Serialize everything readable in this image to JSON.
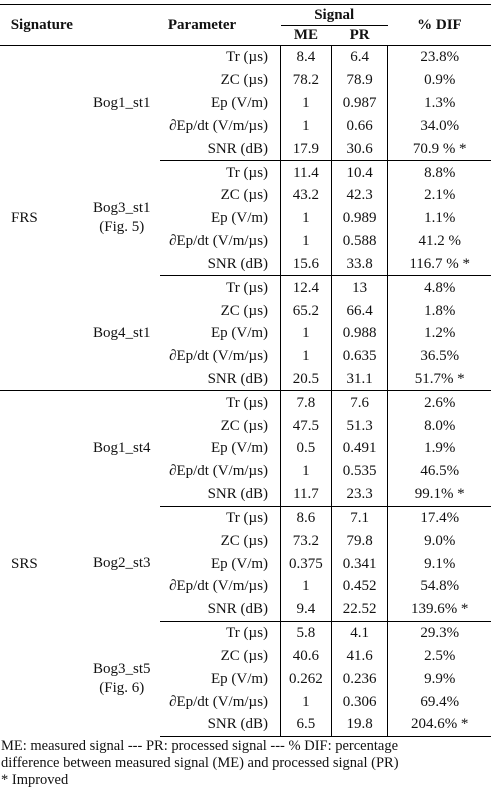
{
  "headers": {
    "signature": "Signature",
    "parameter": "Parameter",
    "signal": "Signal",
    "me": "ME",
    "pr": "PR",
    "dif": "% DIF"
  },
  "sections": [
    {
      "signature": "FRS",
      "groups": [
        {
          "name": "Bog1_st1",
          "ref": "",
          "rows": [
            {
              "param": "Tr (µs)",
              "me": "8.4",
              "pr": "6.4",
              "dif": "23.8%"
            },
            {
              "param": "ZC (µs)",
              "me": "78.2",
              "pr": "78.9",
              "dif": "0.9%"
            },
            {
              "param": "Ep (V/m)",
              "me": "1",
              "pr": "0.987",
              "dif": "1.3%"
            },
            {
              "param": "∂Ep/dt (V/m/µs)",
              "me": "1",
              "pr": "0.66",
              "dif": "34.0%"
            },
            {
              "param": "SNR (dB)",
              "me": "17.9",
              "pr": "30.6",
              "dif": "70.9 % *"
            }
          ]
        },
        {
          "name": "Bog3_st1",
          "ref": "(Fig. 5)",
          "rows": [
            {
              "param": "Tr (µs)",
              "me": "11.4",
              "pr": "10.4",
              "dif": "8.8%"
            },
            {
              "param": "ZC (µs)",
              "me": "43.2",
              "pr": "42.3",
              "dif": "2.1%"
            },
            {
              "param": "Ep (V/m)",
              "me": "1",
              "pr": "0.989",
              "dif": "1.1%"
            },
            {
              "param": "∂Ep/dt (V/m/µs)",
              "me": "1",
              "pr": "0.588",
              "dif": "41.2 %"
            },
            {
              "param": "SNR (dB)",
              "me": "15.6",
              "pr": "33.8",
              "dif": "116.7 % *"
            }
          ]
        },
        {
          "name": "Bog4_st1",
          "ref": "",
          "rows": [
            {
              "param": "Tr (µs)",
              "me": "12.4",
              "pr": "13",
              "dif": "4.8%"
            },
            {
              "param": "ZC (µs)",
              "me": "65.2",
              "pr": "66.4",
              "dif": "1.8%"
            },
            {
              "param": "Ep (V/m)",
              "me": "1",
              "pr": "0.988",
              "dif": "1.2%"
            },
            {
              "param": "∂Ep/dt (V/m/µs)",
              "me": "1",
              "pr": "0.635",
              "dif": "36.5%"
            },
            {
              "param": "SNR (dB)",
              "me": "20.5",
              "pr": "31.1",
              "dif": "51.7% *"
            }
          ]
        }
      ]
    },
    {
      "signature": "SRS",
      "groups": [
        {
          "name": "Bog1_st4",
          "ref": "",
          "rows": [
            {
              "param": "Tr (µs)",
              "me": "7.8",
              "pr": "7.6",
              "dif": "2.6%"
            },
            {
              "param": "ZC (µs)",
              "me": "47.5",
              "pr": "51.3",
              "dif": "8.0%"
            },
            {
              "param": "Ep (V/m)",
              "me": "0.5",
              "pr": "0.491",
              "dif": "1.9%"
            },
            {
              "param": "∂Ep/dt (V/m/µs)",
              "me": "1",
              "pr": "0.535",
              "dif": "46.5%"
            },
            {
              "param": "SNR (dB)",
              "me": "11.7",
              "pr": "23.3",
              "dif": "99.1% *"
            }
          ]
        },
        {
          "name": "Bog2_st3",
          "ref": "",
          "rows": [
            {
              "param": "Tr (µs)",
              "me": "8.6",
              "pr": "7.1",
              "dif": "17.4%"
            },
            {
              "param": "ZC (µs)",
              "me": "73.2",
              "pr": "79.8",
              "dif": "9.0%"
            },
            {
              "param": "Ep (V/m)",
              "me": "0.375",
              "pr": "0.341",
              "dif": "9.1%"
            },
            {
              "param": "∂Ep/dt (V/m/µs)",
              "me": "1",
              "pr": "0.452",
              "dif": "54.8%"
            },
            {
              "param": "SNR (dB)",
              "me": "9.4",
              "pr": "22.52",
              "dif": "139.6% *"
            }
          ]
        },
        {
          "name": "Bog3_st5",
          "ref": "(Fig. 6)",
          "rows": [
            {
              "param": "Tr (µs)",
              "me": "5.8",
              "pr": "4.1",
              "dif": "29.3%"
            },
            {
              "param": "ZC (µs)",
              "me": "40.6",
              "pr": "41.6",
              "dif": "2.5%"
            },
            {
              "param": "Ep (V/m)",
              "me": "0.262",
              "pr": "0.236",
              "dif": "9.9%"
            },
            {
              "param": "∂Ep/dt (V/m/µs)",
              "me": "1",
              "pr": "0.306",
              "dif": "69.4%"
            },
            {
              "param": "SNR (dB)",
              "me": "6.5",
              "pr": "19.8",
              "dif": "204.6% *"
            }
          ]
        }
      ]
    }
  ],
  "notes": {
    "line1": "ME: measured signal    ---   PR: processed signal   ---  % DIF: percentage",
    "line2": "difference between measured signal (ME) and processed signal (PR)",
    "line3": "* Improved"
  }
}
